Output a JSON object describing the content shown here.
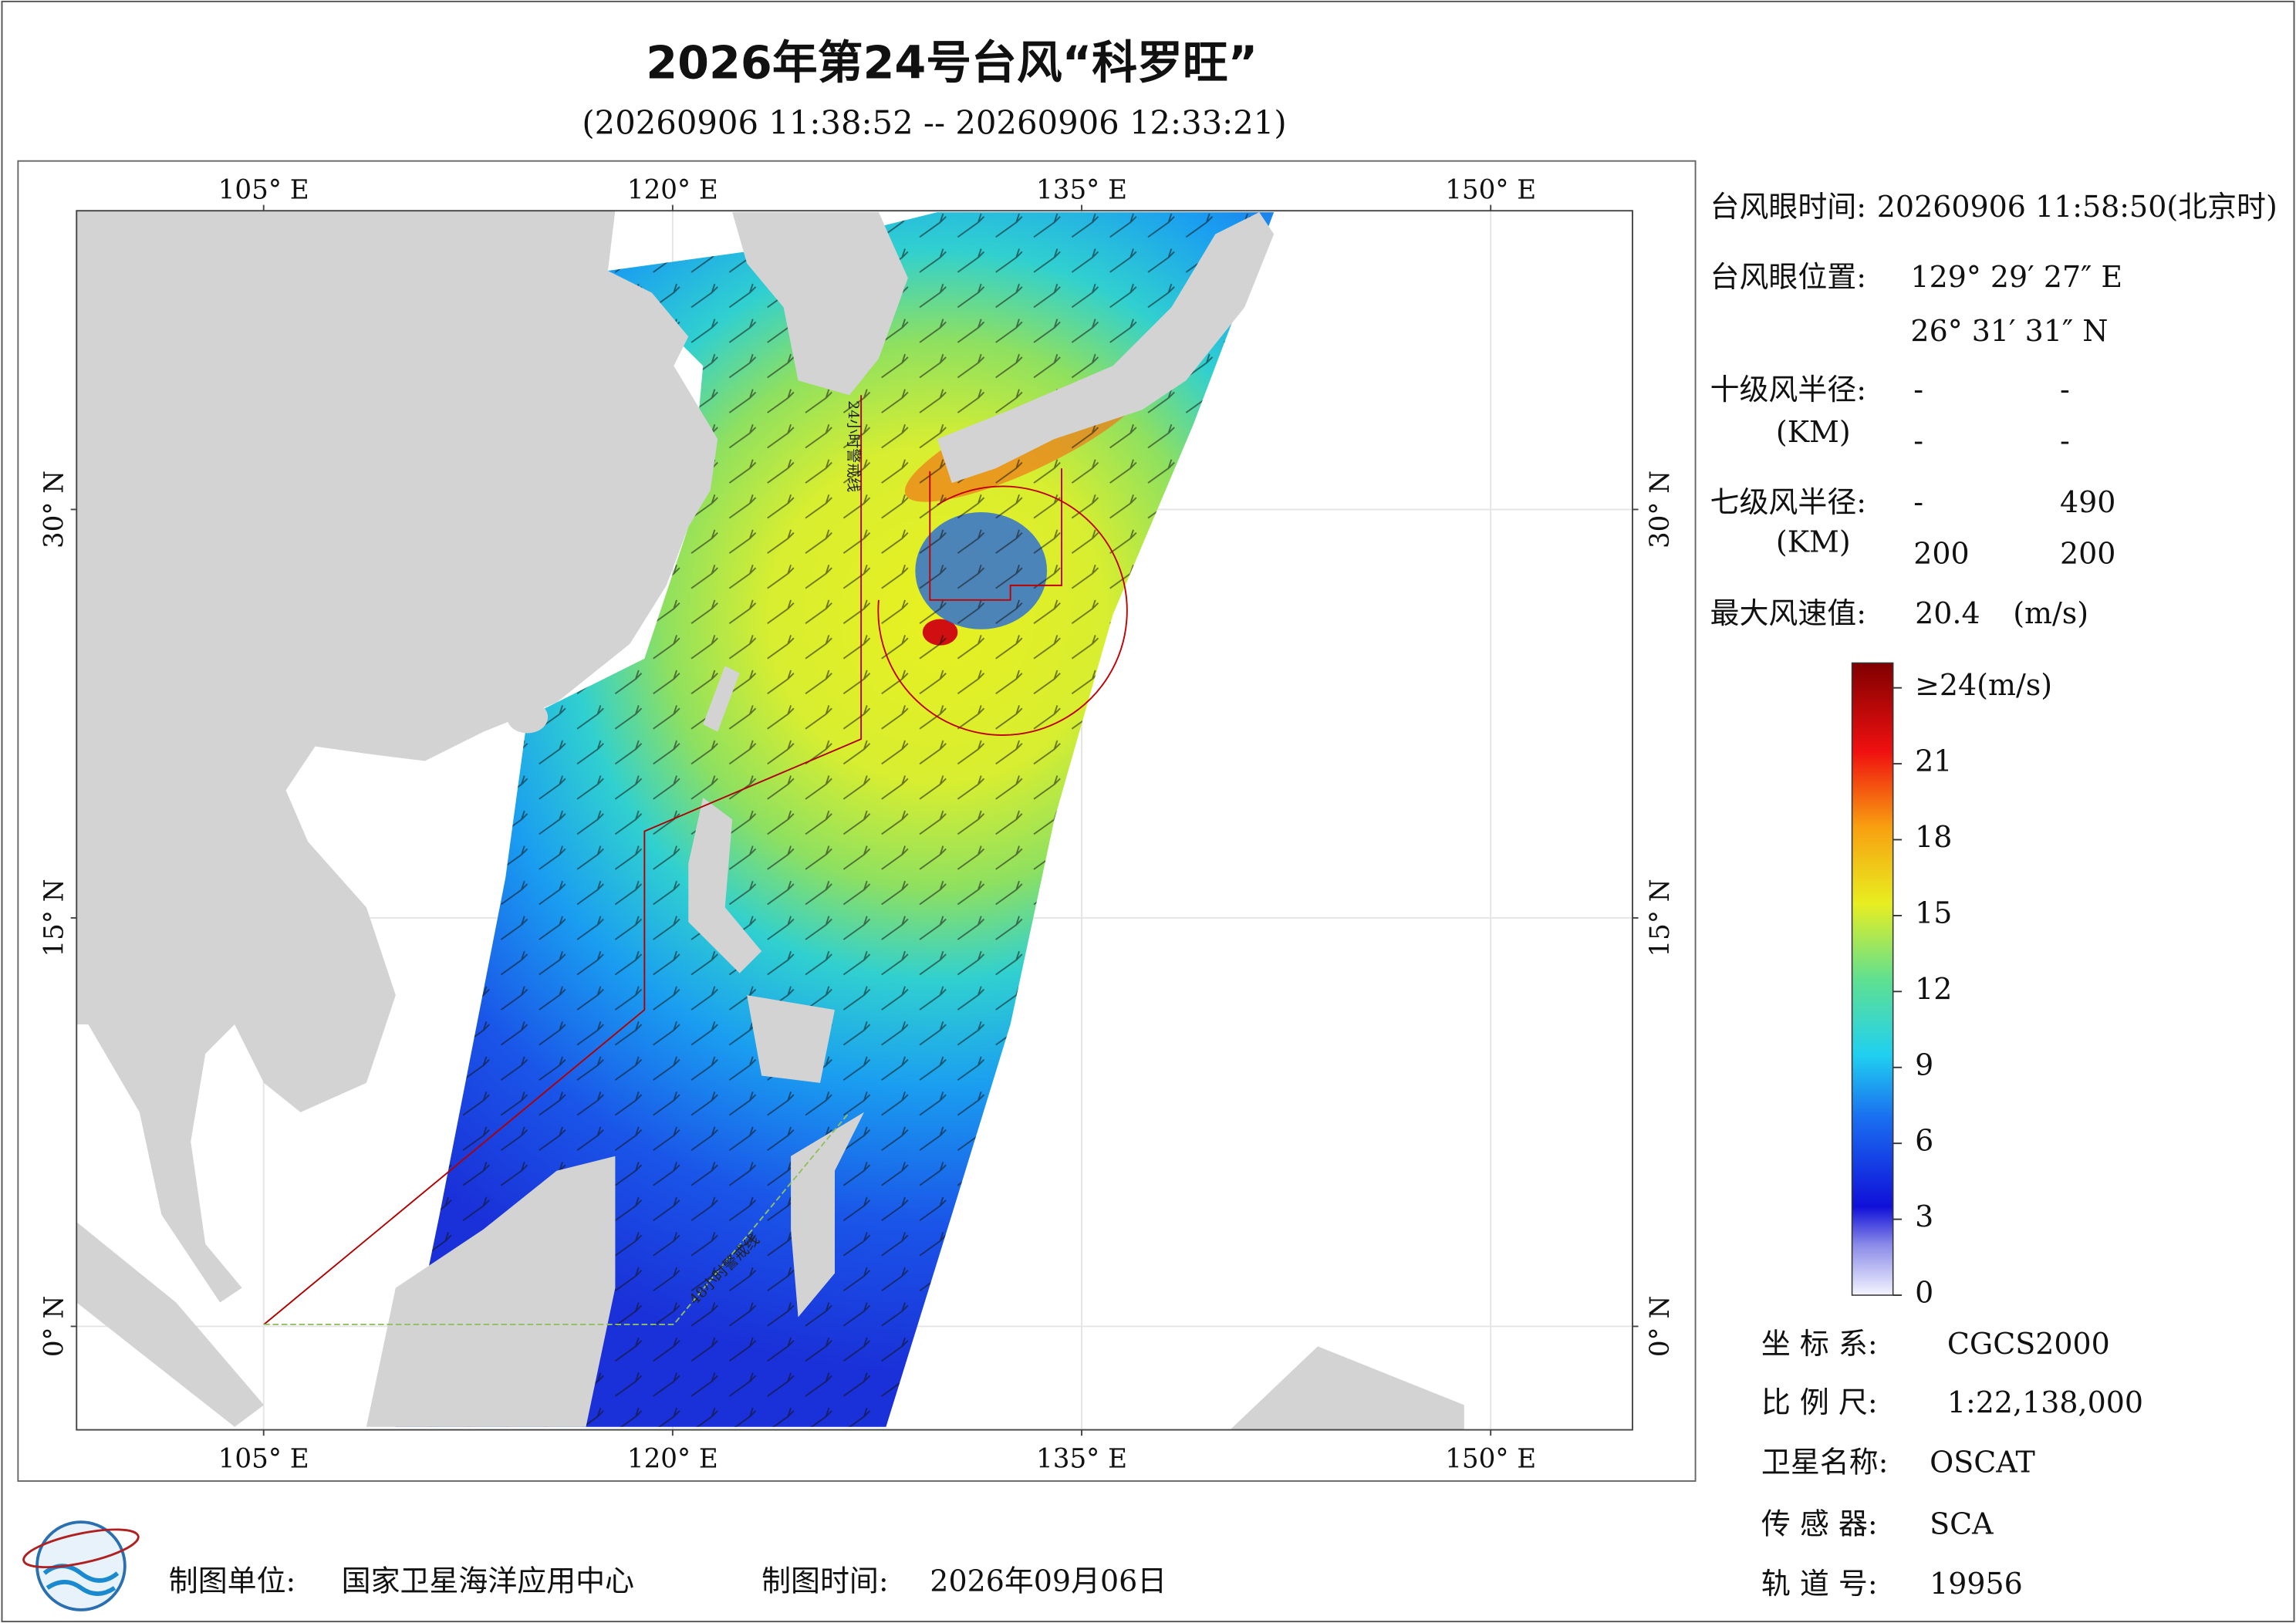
{
  "header": {
    "title": "2026年第24号台风“科罗旺”",
    "subtitle": "(20260906 11:38:52 -- 20260906 12:33:21)"
  },
  "map": {
    "xlim": [
      98.14,
      155.2
    ],
    "ylim": [
      -3.8,
      40.97
    ],
    "xticks": [
      {
        "value": 105,
        "label": "105° E"
      },
      {
        "value": 120,
        "label": "120° E"
      },
      {
        "value": 135,
        "label": "135° E"
      },
      {
        "value": 150,
        "label": "150° E"
      }
    ],
    "yticks": [
      {
        "value": 0,
        "label": "0° N"
      },
      {
        "value": 15,
        "label": "15° N"
      },
      {
        "value": 30,
        "label": "30° N"
      }
    ],
    "annotations": [
      "24小时警戒线",
      "48小时警戒线"
    ]
  },
  "info": {
    "eye_time_label": "台风眼时间:",
    "eye_time": "20260906 11:58:50(北京时)",
    "eye_position_label": "台风眼位置:",
    "eye_lon": "129° 29′ 27″ E",
    "eye_lat": "26° 31′ 31″ N",
    "r10_label": "十级风半径:",
    "r10_unit": "(KM)",
    "r10_values": [
      "-",
      "-",
      "-",
      "-"
    ],
    "r7_label": "七级风半径:",
    "r7_unit": "(KM)",
    "r7_values": [
      "-",
      "490",
      "200",
      "200"
    ],
    "max_wind_label": "最大风速值:",
    "max_wind": "20.4",
    "max_wind_unit": "(m/s)"
  },
  "colorbar": {
    "range": [
      0,
      24
    ],
    "ticks": [
      0,
      3,
      6,
      9,
      12,
      15,
      18,
      21,
      {
        "value": 24,
        "label": "≥24(m/s)"
      }
    ]
  },
  "meta": [
    {
      "label": "坐 标 系:",
      "value": "CGCS2000"
    },
    {
      "label": "比 例 尺:",
      "value": "1:22,138,000"
    },
    {
      "label": "卫星名称:",
      "value": "OSCAT"
    },
    {
      "label": "传 感 器:",
      "value": "SCA"
    },
    {
      "label": "轨 道 号:",
      "value": "19956"
    }
  ],
  "footer": {
    "unit_label": "制图单位:",
    "unit": "国家卫星海洋应用中心",
    "date_label": "制图时间:",
    "date": "2026年09月06日"
  }
}
